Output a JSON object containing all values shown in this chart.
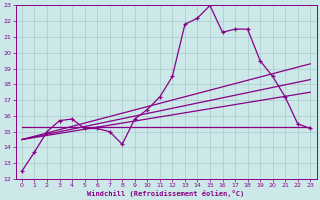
{
  "xlabel": "Windchill (Refroidissement éolien,°C)",
  "bg_color": "#cce8e8",
  "grid_color": "#aacccc",
  "line_color": "#880088",
  "xlim": [
    -0.5,
    23.5
  ],
  "ylim": [
    12,
    23
  ],
  "yticks": [
    12,
    13,
    14,
    15,
    16,
    17,
    18,
    19,
    20,
    21,
    22,
    23
  ],
  "xticks": [
    0,
    1,
    2,
    3,
    4,
    5,
    6,
    7,
    8,
    9,
    10,
    11,
    12,
    13,
    14,
    15,
    16,
    17,
    18,
    19,
    20,
    21,
    22,
    23
  ],
  "line1_x": [
    0,
    1,
    2,
    3,
    4,
    5,
    6,
    7,
    8,
    9,
    10,
    11,
    12,
    13,
    14,
    15,
    16,
    17,
    18,
    19,
    20,
    21,
    22,
    23
  ],
  "line1_y": [
    12.5,
    13.7,
    15.0,
    15.7,
    15.8,
    15.2,
    15.2,
    15.0,
    14.2,
    15.8,
    16.4,
    17.2,
    18.5,
    21.8,
    22.2,
    23.0,
    21.3,
    21.5,
    21.5,
    19.5,
    18.5,
    17.2,
    15.5,
    15.2
  ],
  "line2_x": [
    0,
    23
  ],
  "line2_y": [
    15.3,
    15.3
  ],
  "line3_x": [
    0,
    23
  ],
  "line3_y": [
    14.5,
    19.3
  ],
  "line4_x": [
    0,
    23
  ],
  "line4_y": [
    14.5,
    18.3
  ],
  "line5_x": [
    0,
    23
  ],
  "line5_y": [
    14.5,
    17.5
  ]
}
